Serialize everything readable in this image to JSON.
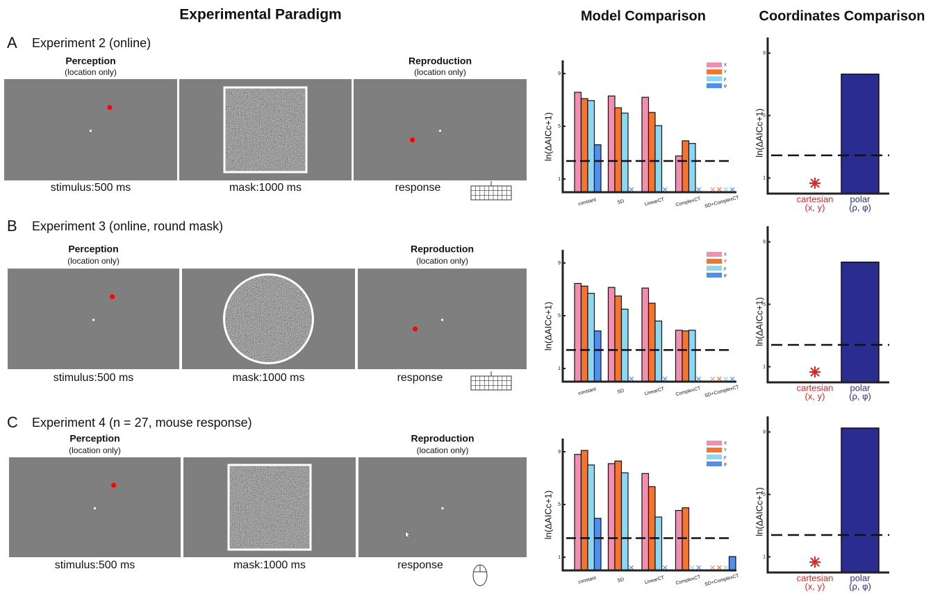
{
  "header": {
    "paradigm": "Experimental Paradigm",
    "model": "Model Comparison",
    "coords": "Coordinates Comparison"
  },
  "panels": [
    {
      "letter": "A",
      "title": "Experiment 2 (online)",
      "screens": [
        {
          "title": "Perception",
          "subtitle": "(location only)",
          "caption": "stimulus:500 ms"
        },
        {
          "caption": "mask:1000 ms"
        },
        {
          "title": "Reproduction",
          "subtitle": "(location only)",
          "caption": "response"
        }
      ]
    },
    {
      "letter": "B",
      "title": "Experiment 3 (online, round mask)",
      "screens": [
        {
          "title": "Perception",
          "subtitle": "(location only)",
          "caption": "stimulus:500 ms"
        },
        {
          "caption": "mask:1000 ms"
        },
        {
          "title": "Reproduction",
          "subtitle": "(location only)",
          "caption": "response"
        }
      ]
    },
    {
      "letter": "C",
      "title": "Experiment 4 (n = 27, mouse response)",
      "screens": [
        {
          "title": "Perception",
          "subtitle": "(location only)",
          "caption": "stimulus:500 ms"
        },
        {
          "caption": "mask:1000 ms"
        },
        {
          "title": "Reproduction",
          "subtitle": "(location only)",
          "caption": "response"
        }
      ]
    }
  ],
  "chart_data": [
    {
      "type": "bar",
      "ylabel": "ln(ΔAICc+1)",
      "categories": [
        "constant",
        "SD",
        "LinearCT",
        "ComplexCT",
        "SD+ComplexCT"
      ],
      "series": [
        {
          "name": "X",
          "color": "#f28fb0",
          "values": [
            7.58,
            7.3,
            7.2,
            2.75,
            0
          ]
        },
        {
          "name": "Y",
          "color": "#f7742e",
          "values": [
            7.1,
            6.4,
            6.05,
            3.9,
            0
          ]
        },
        {
          "name": "ρ",
          "color": "#8ad8f2",
          "values": [
            6.95,
            6.0,
            5.05,
            3.7,
            0
          ]
        },
        {
          "name": "φ",
          "color": "#4f8ff0",
          "values": [
            3.6,
            0,
            0,
            0,
            0
          ]
        }
      ],
      "ylim": [
        0,
        10
      ],
      "yticks": [
        1,
        5,
        9
      ],
      "hline": 2.37
    },
    {
      "type": "coord",
      "ylabel": "ln(ΔAICc+1)",
      "categories": [
        "cartesian",
        "polar"
      ],
      "category_notes": [
        "(x, y)",
        "(ρ, φ)"
      ],
      "values": [
        0,
        7.65
      ],
      "colors": [
        "#e02424",
        "#2a2d8f"
      ],
      "ylim": [
        0,
        10
      ],
      "yticks": [
        1,
        5,
        9
      ],
      "hline": 2.45
    },
    {
      "type": "bar",
      "ylabel": "ln(ΔAICc+1)",
      "categories": [
        "constant",
        "SD",
        "LinearCT",
        "ComplexCT",
        "SD+ComplexCT"
      ],
      "series": [
        {
          "name": "X",
          "color": "#f28fb0",
          "values": [
            7.45,
            7.15,
            7.1,
            3.9,
            0
          ]
        },
        {
          "name": "Y",
          "color": "#f7742e",
          "values": [
            7.25,
            6.5,
            5.95,
            3.85,
            0
          ]
        },
        {
          "name": "ρ",
          "color": "#8ad8f2",
          "values": [
            6.7,
            5.5,
            4.6,
            3.9,
            0
          ]
        },
        {
          "name": "φ",
          "color": "#4f8ff0",
          "values": [
            3.85,
            0,
            0,
            0,
            0
          ]
        }
      ],
      "ylim": [
        0,
        10
      ],
      "yticks": [
        1,
        5,
        9
      ],
      "hline": 2.4
    },
    {
      "type": "coord",
      "ylabel": "ln(ΔAICc+1)",
      "categories": [
        "cartesian",
        "polar"
      ],
      "category_notes": [
        "(x, y)",
        "(ρ, φ)"
      ],
      "values": [
        0,
        7.7
      ],
      "colors": [
        "#e02424",
        "#2a2d8f"
      ],
      "ylim": [
        0,
        10
      ],
      "yticks": [
        1,
        5,
        9
      ],
      "hline": 2.4
    },
    {
      "type": "bar",
      "ylabel": "ln(ΔAICc+1)",
      "categories": [
        "constant",
        "SD",
        "LinearCT",
        "ComplexCT",
        "SD+ComplexCT"
      ],
      "series": [
        {
          "name": "X",
          "color": "#f28fb0",
          "values": [
            8.8,
            8.1,
            7.35,
            4.55,
            0
          ]
        },
        {
          "name": "Y",
          "color": "#f7742e",
          "values": [
            9.1,
            8.3,
            6.35,
            4.75,
            0
          ]
        },
        {
          "name": "ρ",
          "color": "#8ad8f2",
          "values": [
            8.0,
            7.4,
            4.05,
            0,
            0
          ]
        },
        {
          "name": "φ",
          "color": "#4f8ff0",
          "values": [
            3.95,
            0,
            0,
            0,
            1.05
          ]
        }
      ],
      "ylim": [
        0,
        10
      ],
      "yticks": [
        1,
        5,
        9
      ],
      "hline": 2.45
    },
    {
      "type": "coord",
      "ylabel": "ln(ΔAICc+1)",
      "categories": [
        "cartesian",
        "polar"
      ],
      "category_notes": [
        "(x, y)",
        "(ρ, φ)"
      ],
      "values": [
        0,
        9.25
      ],
      "colors": [
        "#e02424",
        "#2a2d8f"
      ],
      "ylim": [
        0,
        10
      ],
      "yticks": [
        1,
        5,
        9
      ],
      "hline": 2.4
    }
  ]
}
